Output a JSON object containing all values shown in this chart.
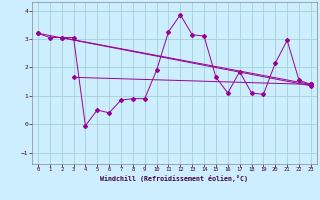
{
  "xlabel": "Windchill (Refroidissement éolien,°C)",
  "bg_color": "#cceeff",
  "grid_color": "#99cccc",
  "line_color": "#990099",
  "xlim": [
    -0.5,
    23.5
  ],
  "ylim": [
    -1.4,
    4.3
  ],
  "yticks": [
    -1,
    0,
    1,
    2,
    3,
    4
  ],
  "xtick_labels": [
    "0",
    "1",
    "2",
    "3",
    "4",
    "5",
    "6",
    "7",
    "8",
    "9",
    "10",
    "11",
    "12",
    "13",
    "14",
    "15",
    "16",
    "17",
    "18",
    "19",
    "20",
    "21",
    "22",
    "23"
  ],
  "xtick_pos": [
    0,
    1,
    2,
    3,
    4,
    5,
    6,
    7,
    8,
    9,
    10,
    11,
    12,
    13,
    14,
    15,
    16,
    17,
    18,
    19,
    20,
    21,
    22,
    23
  ],
  "trend1_x": [
    0,
    23
  ],
  "trend1_y": [
    3.2,
    1.35
  ],
  "trend2_x": [
    2,
    23
  ],
  "trend2_y": [
    3.05,
    1.4
  ],
  "trend3_x": [
    3,
    23
  ],
  "trend3_y": [
    1.65,
    1.4
  ],
  "main_x": [
    0,
    1,
    2,
    3,
    4,
    5,
    6,
    7,
    8,
    9,
    10,
    11,
    12,
    13,
    14,
    15,
    16,
    17,
    18,
    19,
    20,
    21,
    22,
    23
  ],
  "main_y": [
    3.2,
    3.05,
    3.05,
    3.05,
    -0.05,
    0.5,
    0.4,
    0.85,
    0.9,
    0.9,
    1.9,
    3.25,
    3.85,
    3.15,
    3.1,
    1.65,
    1.1,
    1.85,
    1.1,
    1.05,
    2.15,
    2.95,
    1.55,
    1.4
  ]
}
